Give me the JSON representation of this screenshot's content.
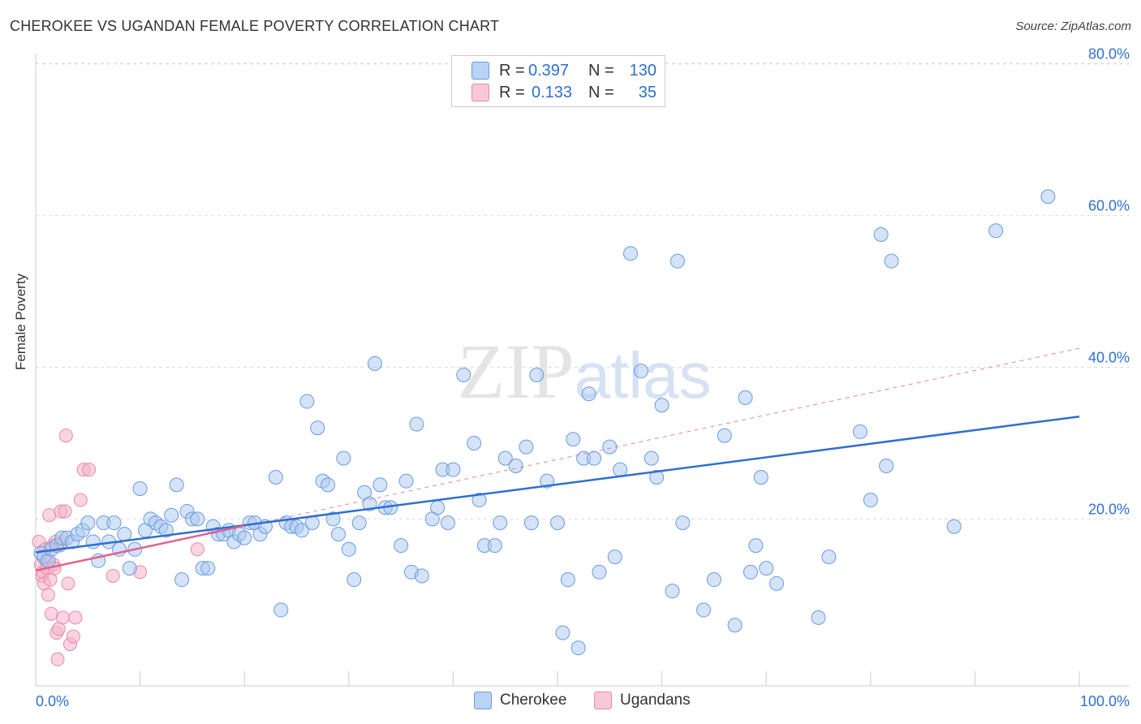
{
  "header": {
    "title": "CHEROKEE VS UGANDAN FEMALE POVERTY CORRELATION CHART",
    "source": "Source: ZipAtlas.com"
  },
  "legend": {
    "rows": [
      {
        "r_label": "R =",
        "r_value": "0.397",
        "n_label": "N =",
        "n_value": "130"
      },
      {
        "r_label": "R =",
        "r_value": "0.133",
        "n_label": "N =",
        "n_value": "35"
      }
    ]
  },
  "colors": {
    "cherokee_fill": "#a9c8f0",
    "cherokee_stroke": "#6a9be0",
    "cherokee_line": "#2f6fd0",
    "ugandans_fill": "#f5b3c8",
    "ugandans_stroke": "#e889a8",
    "ugandans_line": "#e0638f",
    "axis_text": "#2f6fd0",
    "grid": "#dddddd"
  },
  "chart_data": {
    "type": "scatter",
    "title": "CHEROKEE VS UGANDAN FEMALE POVERTY CORRELATION CHART",
    "xlabel": "",
    "ylabel": "Female Poverty",
    "xlim": [
      0,
      100
    ],
    "ylim": [
      -2,
      82
    ],
    "x_tick_labels": [
      "0.0%",
      "100.0%"
    ],
    "y_ticks": [
      20,
      40,
      60,
      80
    ],
    "y_tick_labels": [
      "20.0%",
      "40.0%",
      "60.0%",
      "80.0%"
    ],
    "grid": "horizontal dashed",
    "legend_position": "top-center",
    "series": [
      {
        "name": "Cherokee",
        "r": 0.397,
        "n": 130,
        "trend": {
          "x": [
            0,
            100
          ],
          "y": [
            15.6,
            33.5
          ]
        },
        "points": [
          [
            0.5,
            15.5
          ],
          [
            0.8,
            15
          ],
          [
            1.2,
            14.5
          ],
          [
            1.5,
            16
          ],
          [
            2,
            16.5
          ],
          [
            2.5,
            17.5
          ],
          [
            3,
            17.5
          ],
          [
            3.5,
            17
          ],
          [
            4,
            18
          ],
          [
            4.5,
            18.5
          ],
          [
            5,
            19.5
          ],
          [
            5.5,
            17
          ],
          [
            6,
            14.5
          ],
          [
            6.5,
            19.5
          ],
          [
            7,
            17
          ],
          [
            7.5,
            19.5
          ],
          [
            8,
            16
          ],
          [
            8.5,
            18
          ],
          [
            9,
            13.5
          ],
          [
            9.5,
            16
          ],
          [
            10,
            24
          ],
          [
            10.5,
            18.5
          ],
          [
            11,
            20
          ],
          [
            11.5,
            19.5
          ],
          [
            12,
            19
          ],
          [
            12.5,
            18.5
          ],
          [
            13,
            20.5
          ],
          [
            13.5,
            24.5
          ],
          [
            14,
            12
          ],
          [
            14.5,
            21
          ],
          [
            15,
            20
          ],
          [
            15.5,
            20
          ],
          [
            16,
            13.5
          ],
          [
            16.5,
            13.5
          ],
          [
            17,
            19
          ],
          [
            17.5,
            18
          ],
          [
            18,
            18
          ],
          [
            18.5,
            18.5
          ],
          [
            19,
            17
          ],
          [
            19.5,
            18
          ],
          [
            20,
            17.5
          ],
          [
            20.5,
            19.5
          ],
          [
            21,
            19.5
          ],
          [
            21.5,
            18
          ],
          [
            22,
            19
          ],
          [
            23,
            25.5
          ],
          [
            23.5,
            8
          ],
          [
            24,
            19.5
          ],
          [
            24.5,
            19
          ],
          [
            25,
            19
          ],
          [
            25.5,
            18.5
          ],
          [
            26,
            35.5
          ],
          [
            26.5,
            19.5
          ],
          [
            27,
            32
          ],
          [
            27.5,
            25
          ],
          [
            28,
            24.5
          ],
          [
            28.5,
            20
          ],
          [
            29,
            18
          ],
          [
            29.5,
            28
          ],
          [
            30,
            16
          ],
          [
            30.5,
            12
          ],
          [
            31,
            19.5
          ],
          [
            31.5,
            23.5
          ],
          [
            32,
            22
          ],
          [
            32.5,
            40.5
          ],
          [
            33,
            24.5
          ],
          [
            33.5,
            21.5
          ],
          [
            34,
            21.5
          ],
          [
            35,
            16.5
          ],
          [
            35.5,
            25
          ],
          [
            36,
            13
          ],
          [
            36.5,
            32.5
          ],
          [
            37,
            12.5
          ],
          [
            38,
            20
          ],
          [
            38.5,
            21.5
          ],
          [
            39,
            26.5
          ],
          [
            39.5,
            19.5
          ],
          [
            40,
            26.5
          ],
          [
            41,
            39
          ],
          [
            42,
            30
          ],
          [
            42.5,
            22.5
          ],
          [
            43,
            16.5
          ],
          [
            44,
            16.5
          ],
          [
            44.5,
            19.5
          ],
          [
            45,
            28
          ],
          [
            46,
            27
          ],
          [
            47,
            29.5
          ],
          [
            47.5,
            19.5
          ],
          [
            48,
            39
          ],
          [
            49,
            25
          ],
          [
            50,
            19.5
          ],
          [
            50.5,
            5
          ],
          [
            51,
            12
          ],
          [
            51.5,
            30.5
          ],
          [
            52,
            3
          ],
          [
            52.5,
            28
          ],
          [
            53,
            36.5
          ],
          [
            53.5,
            28
          ],
          [
            54,
            13
          ],
          [
            55,
            29.5
          ],
          [
            55.5,
            15
          ],
          [
            56,
            26.5
          ],
          [
            57,
            55
          ],
          [
            58,
            39.5
          ],
          [
            59,
            28
          ],
          [
            59.5,
            25.5
          ],
          [
            60,
            35
          ],
          [
            61,
            10.5
          ],
          [
            61.5,
            54
          ],
          [
            62,
            19.5
          ],
          [
            64,
            8
          ],
          [
            65,
            12
          ],
          [
            66,
            31
          ],
          [
            67,
            6
          ],
          [
            68,
            36
          ],
          [
            68.5,
            13
          ],
          [
            69,
            16.5
          ],
          [
            69.5,
            25.5
          ],
          [
            70,
            13.5
          ],
          [
            71,
            11.5
          ],
          [
            75,
            7
          ],
          [
            76,
            15
          ],
          [
            79,
            31.5
          ],
          [
            80,
            22.5
          ],
          [
            81,
            57.5
          ],
          [
            81.5,
            27
          ],
          [
            82,
            54
          ],
          [
            88,
            19
          ],
          [
            92,
            58
          ],
          [
            97,
            62.5
          ]
        ]
      },
      {
        "name": "Ugandans",
        "r": 0.133,
        "n": 35,
        "trend": {
          "x": [
            0,
            20
          ],
          "y": [
            13.2,
            19.1
          ]
        },
        "trend_dashed": {
          "x": [
            0,
            100
          ],
          "y": [
            13.2,
            42.5
          ]
        },
        "points": [
          [
            0.3,
            17
          ],
          [
            0.5,
            14
          ],
          [
            0.6,
            12.5
          ],
          [
            0.7,
            13
          ],
          [
            0.8,
            11.5
          ],
          [
            0.9,
            16
          ],
          [
            1,
            14.5
          ],
          [
            1.1,
            13.5
          ],
          [
            1.2,
            10
          ],
          [
            1.3,
            20.5
          ],
          [
            1.4,
            12
          ],
          [
            1.5,
            7.5
          ],
          [
            1.6,
            16.5
          ],
          [
            1.7,
            14
          ],
          [
            1.8,
            13.5
          ],
          [
            1.9,
            17
          ],
          [
            2,
            5
          ],
          [
            2.1,
            1.5
          ],
          [
            2.2,
            5.5
          ],
          [
            2.3,
            16.5
          ],
          [
            2.4,
            21
          ],
          [
            2.5,
            17
          ],
          [
            2.6,
            7
          ],
          [
            2.8,
            21
          ],
          [
            2.9,
            31
          ],
          [
            3.1,
            11.5
          ],
          [
            3.3,
            3.5
          ],
          [
            3.6,
            4.5
          ],
          [
            3.8,
            7
          ],
          [
            4.3,
            22.5
          ],
          [
            4.6,
            26.5
          ],
          [
            5.1,
            26.5
          ],
          [
            7.4,
            12.5
          ],
          [
            10,
            13
          ],
          [
            15.5,
            16
          ]
        ]
      }
    ]
  },
  "bottom_legend": {
    "items": [
      {
        "label": "Cherokee"
      },
      {
        "label": "Ugandans"
      }
    ]
  }
}
